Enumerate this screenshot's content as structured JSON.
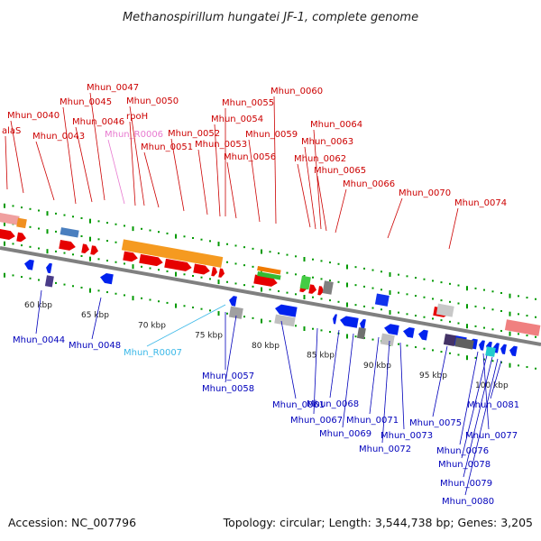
{
  "title": "Methanospirillum hungatei JF-1, complete genome",
  "footer": {
    "accession": "Accession: NC_007796",
    "topology": "Topology: circular; Length: 3,544,738 bp; Genes: 3,205"
  },
  "colors": {
    "top_label": "#cc0000",
    "bottom_label": "#0000bb",
    "rna_top_label": "#e87ad0",
    "rna_bottom_label": "#3ab8e8",
    "forward_gene": "#e60000",
    "reverse_gene": "#0022ee",
    "backbone": "#808080",
    "tick": "#009900"
  },
  "scale_labels": [
    "60 kbp",
    "65 kbp",
    "70 kbp",
    "75 kbp",
    "80 kbp",
    "85 kbp",
    "90 kbp",
    "95 kbp",
    "100 kbp"
  ],
  "top_labels": [
    {
      "name": "alaS",
      "kind": "gene"
    },
    {
      "name": "Mhun_0040",
      "kind": "gene"
    },
    {
      "name": "Mhun_0043",
      "kind": "gene"
    },
    {
      "name": "Mhun_0045",
      "kind": "gene"
    },
    {
      "name": "Mhun_0046",
      "kind": "gene"
    },
    {
      "name": "Mhun_0047",
      "kind": "gene"
    },
    {
      "name": "Mhun_R0006",
      "kind": "rna"
    },
    {
      "name": "rpoH",
      "kind": "gene"
    },
    {
      "name": "Mhun_0050",
      "kind": "gene"
    },
    {
      "name": "Mhun_0051",
      "kind": "gene"
    },
    {
      "name": "Mhun_0052",
      "kind": "gene"
    },
    {
      "name": "Mhun_0053",
      "kind": "gene"
    },
    {
      "name": "Mhun_0054",
      "kind": "gene"
    },
    {
      "name": "Mhun_0055",
      "kind": "gene"
    },
    {
      "name": "Mhun_0056",
      "kind": "gene"
    },
    {
      "name": "Mhun_0059",
      "kind": "gene"
    },
    {
      "name": "Mhun_0060",
      "kind": "gene"
    },
    {
      "name": "Mhun_0062",
      "kind": "gene"
    },
    {
      "name": "Mhun_0063",
      "kind": "gene"
    },
    {
      "name": "Mhun_0064",
      "kind": "gene"
    },
    {
      "name": "Mhun_0065",
      "kind": "gene"
    },
    {
      "name": "Mhun_0066",
      "kind": "gene"
    },
    {
      "name": "Mhun_0070",
      "kind": "gene"
    },
    {
      "name": "Mhun_0074",
      "kind": "gene"
    }
  ],
  "bottom_labels": [
    {
      "name": "Mhun_0044",
      "kind": "gene"
    },
    {
      "name": "Mhun_0048",
      "kind": "gene"
    },
    {
      "name": "Mhun_R0007",
      "kind": "rna"
    },
    {
      "name": "Mhun_0057",
      "kind": "gene"
    },
    {
      "name": "Mhun_0058",
      "kind": "gene"
    },
    {
      "name": "Mhun_0061",
      "kind": "gene"
    },
    {
      "name": "Mhun_0067",
      "kind": "gene"
    },
    {
      "name": "Mhun_0068",
      "kind": "gene"
    },
    {
      "name": "Mhun_0069",
      "kind": "gene"
    },
    {
      "name": "Mhun_0071",
      "kind": "gene"
    },
    {
      "name": "Mhun_0072",
      "kind": "gene"
    },
    {
      "name": "Mhun_0073",
      "kind": "gene"
    },
    {
      "name": "Mhun_0075",
      "kind": "gene"
    },
    {
      "name": "Mhun_0076",
      "kind": "gene"
    },
    {
      "name": "Mhun_0077",
      "kind": "gene"
    },
    {
      "name": "Mhun_0078",
      "kind": "gene"
    },
    {
      "name": "Mhun_0079",
      "kind": "gene"
    },
    {
      "name": "Mhun_0080",
      "kind": "gene"
    },
    {
      "name": "Mhun_0081",
      "kind": "gene"
    }
  ]
}
